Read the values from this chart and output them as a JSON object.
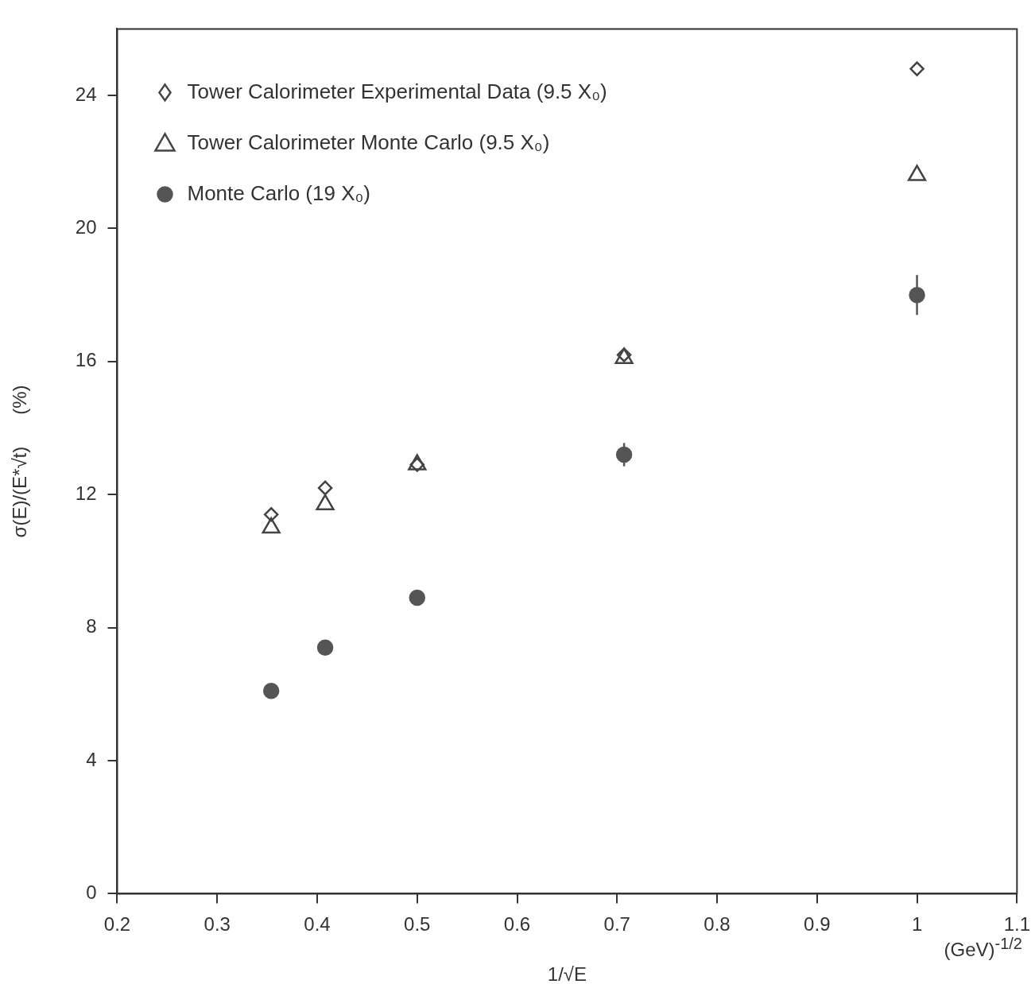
{
  "chart_data": {
    "type": "scatter",
    "xlabel": "1/√E",
    "ylabel": "σ(E)/(E*√t)      (%)",
    "annotations": [
      "(GeV)$^{-1/2}$"
    ],
    "x": [
      0.354,
      0.408,
      0.5,
      0.707,
      1.0
    ],
    "series": [
      {
        "name": "Tower Calorimeter Experimental Data (9.5 X₀)",
        "color": "#444444",
        "marker": "diamond",
        "values": [
          11.4,
          12.2,
          12.9,
          16.2,
          24.8
        ]
      },
      {
        "name": "Tower Calorimeter Monte Carlo (9.5 X₀)",
        "color": "#444444",
        "marker": "triangle",
        "values": [
          11.0,
          11.7,
          12.9,
          16.1,
          21.6
        ]
      },
      {
        "name": "Monte Carlo (19 X₀)",
        "color": "#555555",
        "marker": "circle",
        "values": [
          6.1,
          7.4,
          8.9,
          13.2,
          18.0
        ],
        "errors": [
          null,
          null,
          null,
          0.35,
          0.6
        ]
      }
    ],
    "xlim": [
      0.2,
      1.1
    ],
    "ylim": [
      0,
      26
    ],
    "xticks": [
      0.2,
      0.3,
      0.4,
      0.5,
      0.6,
      0.7,
      0.8,
      0.9,
      1,
      1.1
    ],
    "yticks": [
      0,
      4,
      8,
      12,
      16,
      20,
      24
    ],
    "grid": false,
    "legend": "top left"
  }
}
